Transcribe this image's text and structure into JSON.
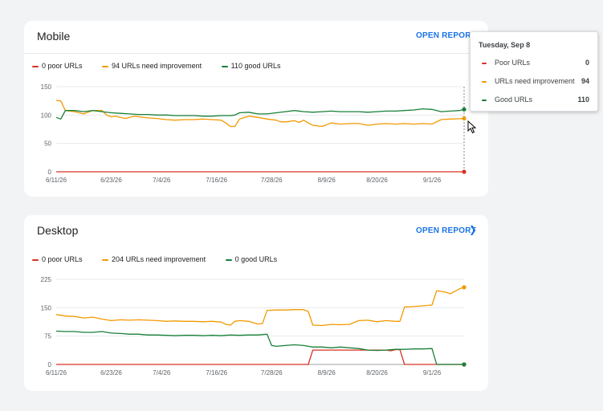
{
  "cards": {
    "mobile": {
      "title": "Mobile",
      "open_report": "OPEN REPORT",
      "legend": [
        "0 poor URLs",
        "94 URLs need improvement",
        "110 good URLs"
      ]
    },
    "desktop": {
      "title": "Desktop",
      "open_report": "OPEN REPORT",
      "legend": [
        "0 poor URLs",
        "204 URLs need improvement",
        "0 good URLs"
      ]
    }
  },
  "tooltip": {
    "date": "Tuesday, Sep 8",
    "rows": [
      {
        "label": "Poor URLs",
        "value": "0",
        "color": "#d93025"
      },
      {
        "label": "URLs need improvement",
        "value": "94",
        "color": "#f29900"
      },
      {
        "label": "Good URLs",
        "value": "110",
        "color": "#188038"
      }
    ]
  },
  "colors": {
    "poor": "#d93025",
    "improve": "#f29900",
    "good": "#188038",
    "link": "#1a73e8"
  },
  "icons": {
    "chevron": "chevron-right-icon",
    "cursor": "mouse-pointer-icon"
  },
  "chart_data": [
    {
      "type": "line",
      "title": "Mobile",
      "x_labels": [
        "6/11/26",
        "6/23/26",
        "7/4/26",
        "7/16/26",
        "7/28/26",
        "8/9/26",
        "8/20/26",
        "9/1/26"
      ],
      "x_label_days": [
        0,
        12,
        23,
        35,
        47,
        59,
        70,
        82
      ],
      "x_range": [
        0,
        89
      ],
      "y_ticks": [
        0,
        50,
        100,
        150
      ],
      "ylim": [
        0,
        150
      ],
      "grid": true,
      "legend_position": "top-left",
      "highlight_day": 89,
      "series": [
        {
          "name": "0 poor URLs",
          "color": "#d93025",
          "points": [
            [
              0,
              0
            ],
            [
              89,
              0
            ]
          ]
        },
        {
          "name": "94 URLs need improvement",
          "color": "#f29900",
          "points": [
            [
              0,
              126
            ],
            [
              1,
              125
            ],
            [
              2,
              108
            ],
            [
              4,
              106
            ],
            [
              6,
              102
            ],
            [
              8,
              108
            ],
            [
              10,
              108
            ],
            [
              11,
              100
            ],
            [
              12,
              97
            ],
            [
              13,
              98
            ],
            [
              15,
              94
            ],
            [
              17,
              98
            ],
            [
              20,
              95
            ],
            [
              22,
              94
            ],
            [
              24,
              92
            ],
            [
              26,
              91
            ],
            [
              28,
              92
            ],
            [
              30,
              92
            ],
            [
              32,
              93
            ],
            [
              34,
              92
            ],
            [
              36,
              91
            ],
            [
              37,
              86
            ],
            [
              38,
              80
            ],
            [
              39,
              80
            ],
            [
              40,
              93
            ],
            [
              42,
              98
            ],
            [
              44,
              96
            ],
            [
              46,
              93
            ],
            [
              48,
              91
            ],
            [
              49,
              88
            ],
            [
              50,
              88
            ],
            [
              52,
              90
            ],
            [
              53,
              87
            ],
            [
              54,
              91
            ],
            [
              55,
              86
            ],
            [
              56,
              82
            ],
            [
              58,
              80
            ],
            [
              60,
              86
            ],
            [
              62,
              84
            ],
            [
              64,
              85
            ],
            [
              66,
              85
            ],
            [
              68,
              82
            ],
            [
              70,
              84
            ],
            [
              72,
              85
            ],
            [
              74,
              84
            ],
            [
              76,
              85
            ],
            [
              78,
              84
            ],
            [
              80,
              85
            ],
            [
              82,
              84
            ],
            [
              84,
              92
            ],
            [
              86,
              93
            ],
            [
              89,
              94
            ]
          ]
        },
        {
          "name": "110 good URLs",
          "color": "#188038",
          "points": [
            [
              0,
              96
            ],
            [
              1,
              93
            ],
            [
              2,
              108
            ],
            [
              4,
              108
            ],
            [
              6,
              106
            ],
            [
              8,
              108
            ],
            [
              10,
              106
            ],
            [
              12,
              104
            ],
            [
              14,
              103
            ],
            [
              16,
              102
            ],
            [
              18,
              101
            ],
            [
              20,
              101
            ],
            [
              22,
              100
            ],
            [
              24,
              100
            ],
            [
              26,
              99
            ],
            [
              28,
              99
            ],
            [
              30,
              99
            ],
            [
              32,
              98
            ],
            [
              34,
              98
            ],
            [
              36,
              99
            ],
            [
              38,
              99
            ],
            [
              39,
              100
            ],
            [
              40,
              104
            ],
            [
              42,
              105
            ],
            [
              44,
              102
            ],
            [
              46,
              102
            ],
            [
              48,
              104
            ],
            [
              50,
              106
            ],
            [
              52,
              108
            ],
            [
              54,
              106
            ],
            [
              56,
              105
            ],
            [
              58,
              106
            ],
            [
              60,
              107
            ],
            [
              62,
              106
            ],
            [
              64,
              106
            ],
            [
              66,
              106
            ],
            [
              68,
              105
            ],
            [
              70,
              106
            ],
            [
              72,
              107
            ],
            [
              74,
              107
            ],
            [
              76,
              108
            ],
            [
              78,
              109
            ],
            [
              80,
              111
            ],
            [
              82,
              110
            ],
            [
              84,
              106
            ],
            [
              86,
              107
            ],
            [
              88,
              108
            ],
            [
              89,
              110
            ]
          ]
        }
      ]
    },
    {
      "type": "line",
      "title": "Desktop",
      "x_labels": [
        "6/11/26",
        "6/23/26",
        "7/4/26",
        "7/16/26",
        "7/28/26",
        "8/9/26",
        "8/20/26",
        "9/1/26"
      ],
      "x_label_days": [
        0,
        12,
        23,
        35,
        47,
        59,
        70,
        82
      ],
      "x_range": [
        0,
        89
      ],
      "y_ticks": [
        0,
        75,
        150,
        225
      ],
      "ylim": [
        0,
        225
      ],
      "grid": true,
      "legend_position": "top-left",
      "series": [
        {
          "name": "0 poor URLs",
          "color": "#d93025",
          "points": [
            [
              0,
              0
            ],
            [
              55,
              0
            ],
            [
              56,
              38
            ],
            [
              72,
              38
            ],
            [
              73,
              36
            ],
            [
              74,
              39
            ],
            [
              75,
              39
            ],
            [
              76,
              0
            ],
            [
              89,
              0
            ]
          ]
        },
        {
          "name": "204 URLs need improvement",
          "color": "#f29900",
          "points": [
            [
              0,
              132
            ],
            [
              2,
              128
            ],
            [
              4,
              127
            ],
            [
              6,
              123
            ],
            [
              8,
              125
            ],
            [
              10,
              120
            ],
            [
              12,
              116
            ],
            [
              14,
              118
            ],
            [
              16,
              117
            ],
            [
              18,
              118
            ],
            [
              20,
              117
            ],
            [
              22,
              116
            ],
            [
              24,
              114
            ],
            [
              26,
              115
            ],
            [
              28,
              114
            ],
            [
              30,
              114
            ],
            [
              32,
              113
            ],
            [
              34,
              114
            ],
            [
              36,
              112
            ],
            [
              37,
              106
            ],
            [
              38,
              104
            ],
            [
              39,
              114
            ],
            [
              40,
              116
            ],
            [
              42,
              114
            ],
            [
              44,
              107
            ],
            [
              45,
              108
            ],
            [
              46,
              143
            ],
            [
              48,
              144
            ],
            [
              50,
              144
            ],
            [
              52,
              145
            ],
            [
              54,
              145
            ],
            [
              55,
              140
            ],
            [
              56,
              104
            ],
            [
              58,
              103
            ],
            [
              60,
              106
            ],
            [
              62,
              105
            ],
            [
              64,
              106
            ],
            [
              66,
              116
            ],
            [
              68,
              117
            ],
            [
              70,
              113
            ],
            [
              72,
              116
            ],
            [
              74,
              114
            ],
            [
              75,
              114
            ],
            [
              76,
              152
            ],
            [
              78,
              153
            ],
            [
              80,
              155
            ],
            [
              82,
              157
            ],
            [
              83,
              195
            ],
            [
              85,
              191
            ],
            [
              86,
              187
            ],
            [
              88,
              200
            ],
            [
              89,
              204
            ]
          ]
        },
        {
          "name": "0 good URLs",
          "color": "#188038",
          "points": [
            [
              0,
              88
            ],
            [
              2,
              87
            ],
            [
              4,
              87
            ],
            [
              6,
              85
            ],
            [
              8,
              85
            ],
            [
              10,
              87
            ],
            [
              12,
              83
            ],
            [
              14,
              82
            ],
            [
              16,
              80
            ],
            [
              18,
              80
            ],
            [
              20,
              78
            ],
            [
              22,
              78
            ],
            [
              24,
              77
            ],
            [
              26,
              76
            ],
            [
              28,
              77
            ],
            [
              30,
              77
            ],
            [
              32,
              76
            ],
            [
              34,
              77
            ],
            [
              36,
              76
            ],
            [
              38,
              78
            ],
            [
              40,
              77
            ],
            [
              42,
              78
            ],
            [
              44,
              78
            ],
            [
              46,
              80
            ],
            [
              47,
              50
            ],
            [
              48,
              48
            ],
            [
              50,
              50
            ],
            [
              52,
              52
            ],
            [
              54,
              50
            ],
            [
              56,
              46
            ],
            [
              58,
              46
            ],
            [
              60,
              44
            ],
            [
              62,
              46
            ],
            [
              64,
              44
            ],
            [
              66,
              42
            ],
            [
              68,
              38
            ],
            [
              70,
              37
            ],
            [
              72,
              38
            ],
            [
              74,
              40
            ],
            [
              76,
              40
            ],
            [
              78,
              41
            ],
            [
              80,
              41
            ],
            [
              82,
              42
            ],
            [
              83,
              0
            ],
            [
              89,
              0
            ]
          ]
        }
      ]
    }
  ]
}
